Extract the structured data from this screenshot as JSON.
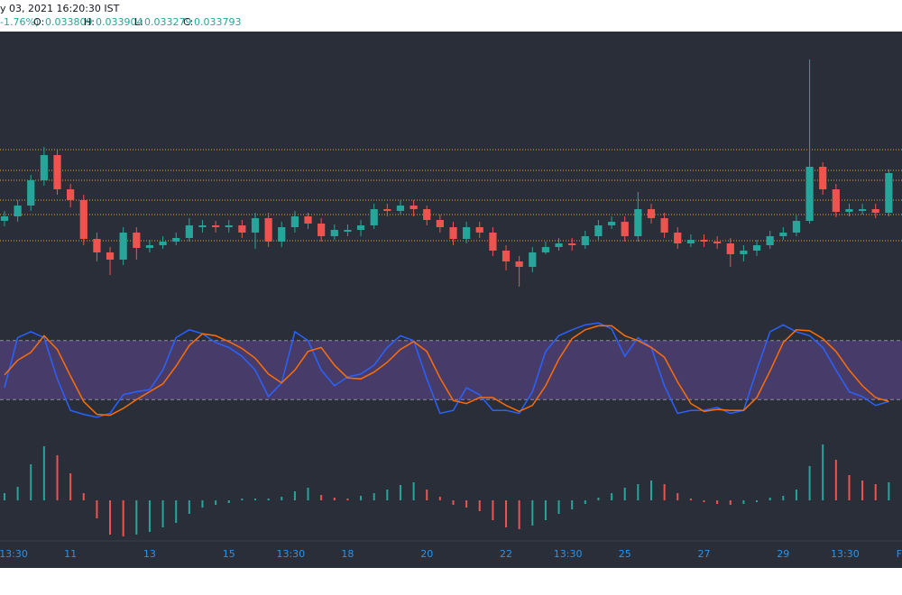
{
  "header": {
    "title": "y 03, 2021 16:20:30 IST",
    "change": "-1.76%)",
    "o_label": "O:",
    "o": 0.033809,
    "h_label": "H:",
    "h": 0.033904,
    "l_label": "L:",
    "l": 0.033279,
    "c_label": "C:",
    "c": 0.033793
  },
  "chart_data": [
    {
      "type": "candlestick",
      "up_color": "#26a69a",
      "down_color": "#ef5350",
      "level_color": "#f0a030",
      "xlim": [
        9.22,
        32.0
      ],
      "ylim": [
        0.03272,
        0.03577
      ],
      "xticks": [
        {
          "value": 9.5625,
          "label": "13:30"
        },
        11,
        13,
        15,
        {
          "value": 16.5625,
          "label": "13:30"
        },
        18,
        20,
        22,
        {
          "value": 23.5625,
          "label": "13:30"
        },
        25,
        27,
        29,
        {
          "value": 30.5625,
          "label": "13:30"
        },
        {
          "value": 32,
          "label": "Fe"
        }
      ],
      "levels": [
        0.03446,
        0.03423,
        0.03412,
        0.0339,
        0.03374,
        0.03345
      ],
      "x": [
        9.333,
        9.667,
        10,
        10.333,
        10.667,
        11,
        11.333,
        11.667,
        12,
        12.333,
        12.667,
        13,
        13.333,
        13.667,
        14,
        14.333,
        14.667,
        15,
        15.333,
        15.667,
        16,
        16.333,
        16.667,
        17,
        17.333,
        17.667,
        18,
        18.333,
        18.667,
        19,
        19.333,
        19.667,
        20,
        20.333,
        20.667,
        21,
        21.333,
        21.667,
        22,
        22.333,
        22.667,
        23,
        23.333,
        23.667,
        24,
        24.333,
        24.667,
        25,
        25.333,
        25.667,
        26,
        26.333,
        26.667,
        27,
        27.333,
        27.667,
        28,
        28.333,
        28.667,
        29,
        29.333,
        29.667,
        30,
        30.333,
        30.667,
        31,
        31.333,
        31.667
      ],
      "open": [
        0.03367,
        0.03372,
        0.03384,
        0.03412,
        0.0344,
        0.03402,
        0.0339,
        0.03347,
        0.03332,
        0.03324,
        0.03354,
        0.03337,
        0.0334,
        0.03344,
        0.03348,
        0.0336,
        0.03362,
        0.0336,
        0.03362,
        0.03354,
        0.0337,
        0.03344,
        0.0336,
        0.03372,
        0.03364,
        0.0335,
        0.03355,
        0.03357,
        0.03362,
        0.0338,
        0.03378,
        0.03384,
        0.0338,
        0.03368,
        0.0336,
        0.03347,
        0.0336,
        0.03354,
        0.03334,
        0.03322,
        0.03316,
        0.03332,
        0.03338,
        0.03342,
        0.0334,
        0.0335,
        0.03362,
        0.03366,
        0.0335,
        0.0338,
        0.0337,
        0.03354,
        0.03342,
        0.03346,
        0.03344,
        0.03342,
        0.0333,
        0.03334,
        0.0334,
        0.0335,
        0.03354,
        0.03367,
        0.03427,
        0.03402,
        0.03377,
        0.03378,
        0.0338,
        0.03376
      ],
      "high": [
        0.03378,
        0.0339,
        0.03418,
        0.03449,
        0.03446,
        0.03408,
        0.03396,
        0.03354,
        0.03338,
        0.0336,
        0.0336,
        0.03346,
        0.0335,
        0.03354,
        0.0337,
        0.03368,
        0.03367,
        0.03368,
        0.03368,
        0.03376,
        0.03376,
        0.03366,
        0.03378,
        0.03376,
        0.0337,
        0.03363,
        0.03363,
        0.03368,
        0.03386,
        0.03386,
        0.0339,
        0.0339,
        0.03384,
        0.03374,
        0.03366,
        0.03366,
        0.03366,
        0.0336,
        0.0334,
        0.03328,
        0.03338,
        0.03344,
        0.03348,
        0.03348,
        0.03356,
        0.03368,
        0.03372,
        0.03372,
        0.03399,
        0.03386,
        0.03376,
        0.0336,
        0.03352,
        0.03352,
        0.0335,
        0.03348,
        0.0334,
        0.03346,
        0.03356,
        0.0336,
        0.03373,
        0.03546,
        0.03432,
        0.03408,
        0.03386,
        0.03386,
        0.03386,
        0.03424
      ],
      "low": [
        0.03361,
        0.03366,
        0.03378,
        0.03406,
        0.03396,
        0.03382,
        0.0334,
        0.03322,
        0.03307,
        0.03318,
        0.03324,
        0.03332,
        0.03336,
        0.0334,
        0.03344,
        0.03354,
        0.03354,
        0.03354,
        0.03348,
        0.03336,
        0.03338,
        0.03338,
        0.03354,
        0.03358,
        0.03344,
        0.03346,
        0.0335,
        0.0335,
        0.03358,
        0.03372,
        0.03374,
        0.03372,
        0.03362,
        0.03354,
        0.0334,
        0.03342,
        0.03348,
        0.03328,
        0.03312,
        0.03294,
        0.0331,
        0.0333,
        0.03334,
        0.03334,
        0.03336,
        0.03346,
        0.03358,
        0.03344,
        0.03344,
        0.03364,
        0.03348,
        0.03336,
        0.03338,
        0.03338,
        0.03336,
        0.03316,
        0.03322,
        0.03328,
        0.03336,
        0.03346,
        0.0335,
        0.03364,
        0.03396,
        0.03371,
        0.03372,
        0.03374,
        0.0337,
        0.03372
      ],
      "close": [
        0.03372,
        0.03384,
        0.03412,
        0.0344,
        0.03402,
        0.0339,
        0.03347,
        0.03332,
        0.03324,
        0.03354,
        0.03337,
        0.0334,
        0.03344,
        0.03348,
        0.03362,
        0.03362,
        0.0336,
        0.03362,
        0.03354,
        0.0337,
        0.03344,
        0.0336,
        0.03372,
        0.03364,
        0.0335,
        0.03357,
        0.03357,
        0.03362,
        0.0338,
        0.03378,
        0.03384,
        0.0338,
        0.03368,
        0.0336,
        0.03347,
        0.0336,
        0.03354,
        0.03334,
        0.03322,
        0.03316,
        0.03332,
        0.03338,
        0.03342,
        0.0334,
        0.0335,
        0.03362,
        0.03366,
        0.0335,
        0.0338,
        0.0337,
        0.03354,
        0.03342,
        0.03346,
        0.03344,
        0.03342,
        0.0333,
        0.03334,
        0.0334,
        0.0335,
        0.03354,
        0.03367,
        0.03427,
        0.03402,
        0.03377,
        0.0338,
        0.0338,
        0.03376,
        0.0342
      ]
    },
    {
      "type": "line",
      "ylim": [
        0,
        100
      ],
      "bands": [
        20,
        80
      ],
      "band_color": "#7e57c2",
      "series": [
        {
          "color": "#2962ff",
          "values": [
            32,
            83,
            89,
            83,
            41,
            9,
            5,
            2,
            6,
            25,
            28,
            30,
            50,
            83,
            91,
            87,
            78,
            73,
            64,
            50,
            23,
            37,
            89,
            80,
            50,
            34,
            43,
            46,
            55,
            73,
            85,
            80,
            41,
            6,
            9,
            32,
            25,
            9,
            9,
            6,
            28,
            69,
            85,
            91,
            96,
            98,
            92,
            64,
            83,
            73,
            34,
            6,
            9,
            9,
            12,
            6,
            9,
            50,
            89,
            96,
            89,
            85,
            73,
            50,
            28,
            23,
            14,
            18
          ]
        },
        {
          "color": "#ff6d00",
          "values": [
            45,
            60,
            68,
            85,
            71,
            44,
            18,
            5,
            4,
            11,
            20,
            28,
            36,
            54,
            75,
            87,
            85,
            79,
            72,
            62,
            46,
            37,
            50,
            69,
            73,
            55,
            42,
            41,
            48,
            58,
            71,
            79,
            69,
            42,
            19,
            16,
            22,
            22,
            14,
            8,
            14,
            34,
            61,
            82,
            91,
            95,
            95,
            85,
            80,
            73,
            63,
            38,
            16,
            8,
            10,
            9,
            9,
            22,
            49,
            78,
            91,
            90,
            82,
            69,
            50,
            34,
            22,
            18
          ]
        }
      ]
    },
    {
      "type": "histogram",
      "up_color": "#26a69a",
      "down_color": "#ef5350",
      "ylim": [
        -4.5e-05,
        7.5e-05
      ],
      "values": [
        8e-06,
        1.5e-05,
        4e-05,
        6e-05,
        5e-05,
        3e-05,
        8e-06,
        -2e-05,
        -3.8e-05,
        -4e-05,
        -3.8e-05,
        -3.5e-05,
        -3e-05,
        -2.5e-05,
        -1.5e-05,
        -8e-06,
        -5e-06,
        -3e-06,
        2e-06,
        2e-06,
        2e-06,
        4e-06,
        1e-05,
        1.4e-05,
        6e-06,
        3e-06,
        2e-06,
        5e-06,
        8e-06,
        1.2e-05,
        1.7e-05,
        2e-05,
        1.2e-05,
        4e-06,
        -5e-06,
        -8e-06,
        -1.2e-05,
        -2.2e-05,
        -3e-05,
        -3.2e-05,
        -2.8e-05,
        -2.2e-05,
        -1.5e-05,
        -1e-05,
        -4e-06,
        3e-06,
        8e-06,
        1.4e-05,
        1.8e-05,
        2.2e-05,
        1.8e-05,
        8e-06,
        2e-06,
        -2e-06,
        -4e-06,
        -5e-06,
        -4e-06,
        -2e-06,
        3e-06,
        5e-06,
        1.2e-05,
        3.8e-05,
        6.2e-05,
        4.5e-05,
        2.8e-05,
        2.2e-05,
        1.8e-05,
        2e-05
      ]
    }
  ]
}
